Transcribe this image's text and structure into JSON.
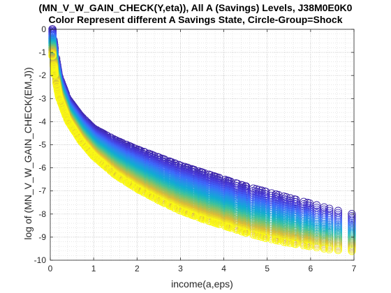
{
  "chart_data": {
    "type": "scatter",
    "title": "(MN_V_W_GAIN_CHECK(Y,eta)), All A (Savings) Levels, J38M0E0K0",
    "subtitle": "Color Represent different A Savings State, Circle-Group=Shock",
    "xlabel": "income(a,eps)",
    "ylabel": "log of (MN_V_W_GAIN_CHECK(EM,J))",
    "xlim": [
      0,
      7
    ],
    "ylim": [
      -10,
      0
    ],
    "xticks": [
      0,
      1,
      2,
      3,
      4,
      5,
      6,
      7
    ],
    "yticks": [
      -10,
      -9,
      -8,
      -7,
      -6,
      -5,
      -4,
      -3,
      -2,
      -1,
      0
    ],
    "grid": "on (dotted, major and minor)",
    "marker": "open circle",
    "colormap": "parula",
    "color_meaning": "savings level A (low = dark blue, high = yellow)",
    "series": [
      {
        "values_description": "upper envelope (lowest savings, dark blue)",
        "x": [
          0.05,
          0.1,
          0.2,
          0.4,
          0.7,
          1.0,
          1.5,
          2.0,
          2.5,
          3.0,
          3.5,
          4.0,
          4.5,
          5.0,
          5.5,
          6.0,
          6.5,
          6.95
        ],
        "y": [
          0.0,
          -0.8,
          -2.0,
          -3.0,
          -3.75,
          -4.3,
          -4.8,
          -5.2,
          -5.55,
          -5.9,
          -6.2,
          -6.5,
          -6.8,
          -7.05,
          -7.3,
          -7.55,
          -7.8,
          -8.0
        ]
      },
      {
        "values_description": "lower envelope (highest savings, yellow)",
        "x": [
          0.05,
          0.1,
          0.2,
          0.4,
          0.7,
          1.0,
          1.5,
          2.0,
          2.5,
          3.0,
          3.5,
          4.0,
          4.5,
          5.0,
          5.5,
          6.0,
          6.5,
          6.95
        ],
        "y": [
          -1.8,
          -2.5,
          -3.3,
          -4.2,
          -5.0,
          -5.6,
          -6.3,
          -6.9,
          -7.4,
          -7.85,
          -8.2,
          -8.5,
          -8.8,
          -9.05,
          -9.25,
          -9.4,
          -9.55,
          -9.6
        ]
      }
    ]
  }
}
